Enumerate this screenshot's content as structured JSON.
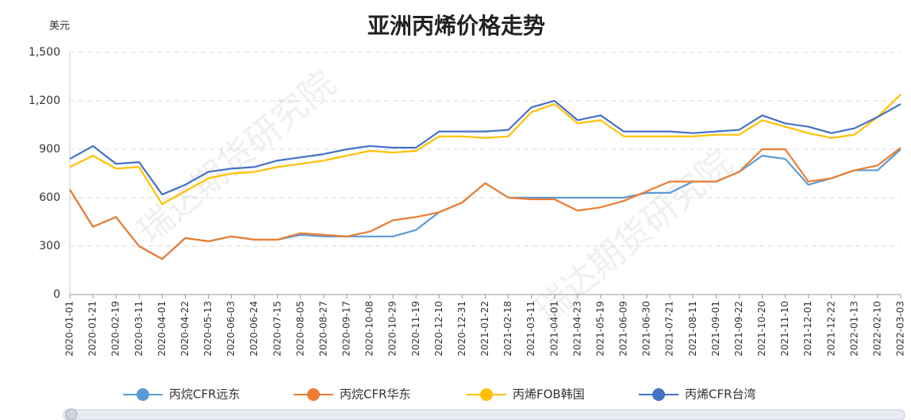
{
  "chart_data": {
    "type": "line",
    "title": "亚洲丙烯价格走势",
    "y_label": "美元",
    "watermark": "瑞达期货研究院",
    "categories": [
      "2020-01-01",
      "2020-01-21",
      "2020-02-19",
      "2020-03-11",
      "2020-04-01",
      "2020-04-22",
      "2020-05-13",
      "2020-06-03",
      "2020-06-24",
      "2020-07-15",
      "2020-08-05",
      "2020-08-27",
      "2020-09-17",
      "2020-10-08",
      "2020-10-29",
      "2020-11-19",
      "2020-12-10",
      "2020-12-31",
      "2021-01-22",
      "2021-02-18",
      "2021-03-11",
      "2021-04-01",
      "2021-04-23",
      "2021-05-19",
      "2021-06-09",
      "2021-06-30",
      "2021-07-21",
      "2021-08-11",
      "2021-09-01",
      "2021-09-22",
      "2021-10-20",
      "2021-11-10",
      "2021-12-01",
      "2021-12-22",
      "2022-01-13",
      "2022-02-10",
      "2022-03-03"
    ],
    "series": [
      {
        "name": "丙烷CFR远东",
        "color": "#5b9bd5",
        "values": [
          650,
          420,
          480,
          300,
          220,
          350,
          330,
          360,
          340,
          340,
          370,
          360,
          360,
          360,
          360,
          400,
          510,
          570,
          690,
          600,
          600,
          600,
          600,
          600,
          600,
          630,
          630,
          700,
          700,
          760,
          860,
          840,
          680,
          720,
          770,
          770,
          900
        ]
      },
      {
        "name": "丙烷CFR华东",
        "color": "#ed7d31",
        "values": [
          650,
          420,
          480,
          300,
          220,
          350,
          330,
          360,
          340,
          340,
          380,
          370,
          360,
          390,
          460,
          480,
          510,
          570,
          690,
          600,
          590,
          590,
          520,
          540,
          580,
          640,
          700,
          700,
          700,
          760,
          900,
          900,
          700,
          720,
          770,
          800,
          910
        ]
      },
      {
        "name": "丙烯FOB韩国",
        "color": "#ffc000",
        "values": [
          790,
          860,
          780,
          790,
          560,
          640,
          720,
          750,
          760,
          790,
          810,
          830,
          860,
          890,
          880,
          890,
          980,
          980,
          970,
          980,
          1130,
          1180,
          1060,
          1080,
          980,
          980,
          980,
          980,
          990,
          990,
          1080,
          1040,
          1000,
          970,
          990,
          1100,
          1240
        ]
      },
      {
        "name": "丙烯CFR台湾",
        "color": "#4472c4",
        "values": [
          840,
          920,
          810,
          820,
          620,
          680,
          760,
          780,
          790,
          830,
          850,
          870,
          900,
          920,
          910,
          910,
          1010,
          1010,
          1010,
          1020,
          1160,
          1200,
          1080,
          1110,
          1010,
          1010,
          1010,
          1000,
          1010,
          1020,
          1110,
          1060,
          1040,
          1000,
          1030,
          1100,
          1180
        ]
      }
    ],
    "ylim": [
      0,
      1500
    ],
    "yticks": [
      0,
      300,
      600,
      900,
      {
        "value": 1200,
        "label": "1,200"
      },
      {
        "value": 1500,
        "label": "1,500"
      }
    ],
    "grid": true
  }
}
